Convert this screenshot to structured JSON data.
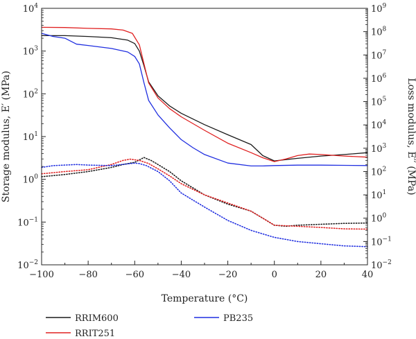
{
  "chart_data": {
    "type": "line",
    "title": "",
    "xlabel": "Temperature (°C)",
    "ylabel_left": "Storage modulus, E′ (MPa)",
    "ylabel_right": "Loss modulus, E′′ (MPa)",
    "xlim": [
      -100,
      40
    ],
    "ylim_left": [
      0.01,
      10000
    ],
    "ylim_right": [
      0.01,
      1000000000
    ],
    "y_scale": "log",
    "grid": false,
    "legend_position": "bottom",
    "x_ticks": [
      "−100",
      "−80",
      "−60",
      "−40",
      "−20",
      "0",
      "20",
      "40"
    ],
    "left_tick_exponents": [
      "−2",
      "−1",
      "0",
      "1",
      "2",
      "3",
      "4"
    ],
    "right_tick_exponents": [
      "−2",
      "−1",
      "0",
      "1",
      "2",
      "3",
      "4",
      "5",
      "6",
      "7",
      "8",
      "9"
    ],
    "tick_base": "10",
    "series": [
      {
        "name": "RRIM600",
        "color": "#1a1a1a",
        "style": "solid",
        "axis": "left",
        "points": [
          [
            -100,
            2300
          ],
          [
            -90,
            2300
          ],
          [
            -80,
            2200
          ],
          [
            -70,
            2050
          ],
          [
            -63,
            1800
          ],
          [
            -60,
            1500
          ],
          [
            -58,
            1000
          ],
          [
            -56,
            450
          ],
          [
            -54,
            190
          ],
          [
            -50,
            90
          ],
          [
            -45,
            52
          ],
          [
            -40,
            35
          ],
          [
            -30,
            19
          ],
          [
            -20,
            11
          ],
          [
            -10,
            6.5
          ],
          [
            -5,
            3.6
          ],
          [
            0,
            2.7
          ],
          [
            5,
            2.9
          ],
          [
            10,
            3.1
          ],
          [
            20,
            3.5
          ],
          [
            30,
            3.8
          ],
          [
            40,
            4.2
          ]
        ]
      },
      {
        "name": "RRIT251",
        "color": "#e02020",
        "style": "solid",
        "axis": "left",
        "points": [
          [
            -100,
            3600
          ],
          [
            -90,
            3550
          ],
          [
            -80,
            3400
          ],
          [
            -70,
            3300
          ],
          [
            -65,
            3100
          ],
          [
            -61,
            2600
          ],
          [
            -58,
            1400
          ],
          [
            -56,
            500
          ],
          [
            -54,
            180
          ],
          [
            -50,
            80
          ],
          [
            -45,
            45
          ],
          [
            -40,
            29
          ],
          [
            -30,
            14
          ],
          [
            -20,
            7
          ],
          [
            -10,
            4.2
          ],
          [
            -5,
            3.2
          ],
          [
            0,
            2.6
          ],
          [
            5,
            3
          ],
          [
            10,
            3.6
          ],
          [
            15,
            3.9
          ],
          [
            20,
            3.8
          ],
          [
            30,
            3.5
          ],
          [
            40,
            3.3
          ]
        ]
      },
      {
        "name": "PB235",
        "color": "#1f2ee0",
        "style": "solid",
        "axis": "left",
        "points": [
          [
            -100,
            2600
          ],
          [
            -95,
            2200
          ],
          [
            -90,
            2000
          ],
          [
            -85,
            1450
          ],
          [
            -80,
            1350
          ],
          [
            -70,
            1150
          ],
          [
            -63,
            950
          ],
          [
            -60,
            750
          ],
          [
            -58,
            500
          ],
          [
            -56,
            180
          ],
          [
            -54,
            70
          ],
          [
            -50,
            32
          ],
          [
            -45,
            16
          ],
          [
            -40,
            8.5
          ],
          [
            -35,
            5.5
          ],
          [
            -30,
            3.8
          ],
          [
            -20,
            2.4
          ],
          [
            -10,
            2.05
          ],
          [
            -5,
            2.05
          ],
          [
            0,
            2.1
          ],
          [
            10,
            2.15
          ],
          [
            20,
            2.15
          ],
          [
            30,
            2.12
          ],
          [
            40,
            2.1
          ]
        ]
      },
      {
        "name": "RRIM600",
        "color": "#1a1a1a",
        "style": "dotted",
        "axis": "right",
        "points": [
          [
            -100,
            60
          ],
          [
            -90,
            75
          ],
          [
            -80,
            100
          ],
          [
            -70,
            150
          ],
          [
            -65,
            200
          ],
          [
            -60,
            250
          ],
          [
            -56,
            400
          ],
          [
            -53,
            300
          ],
          [
            -50,
            200
          ],
          [
            -45,
            100
          ],
          [
            -40,
            40
          ],
          [
            -30,
            10
          ],
          [
            -20,
            4
          ],
          [
            -10,
            2
          ],
          [
            -5,
            1
          ],
          [
            0,
            0.5
          ],
          [
            5,
            0.45
          ],
          [
            10,
            0.5
          ],
          [
            20,
            0.55
          ],
          [
            30,
            0.6
          ],
          [
            40,
            0.62
          ]
        ]
      },
      {
        "name": "RRIT251",
        "color": "#e02020",
        "style": "dotted",
        "axis": "right",
        "points": [
          [
            -100,
            80
          ],
          [
            -90,
            100
          ],
          [
            -80,
            120
          ],
          [
            -70,
            200
          ],
          [
            -65,
            300
          ],
          [
            -62,
            340
          ],
          [
            -58,
            300
          ],
          [
            -54,
            220
          ],
          [
            -50,
            130
          ],
          [
            -45,
            65
          ],
          [
            -40,
            30
          ],
          [
            -30,
            10
          ],
          [
            -20,
            4.5
          ],
          [
            -10,
            2
          ],
          [
            -5,
            1
          ],
          [
            0,
            0.5
          ],
          [
            10,
            0.45
          ],
          [
            20,
            0.4
          ],
          [
            30,
            0.35
          ],
          [
            40,
            0.34
          ]
        ]
      },
      {
        "name": "PB235",
        "color": "#1f2ee0",
        "style": "dotted",
        "axis": "right",
        "points": [
          [
            -100,
            150
          ],
          [
            -95,
            180
          ],
          [
            -90,
            190
          ],
          [
            -85,
            200
          ],
          [
            -80,
            190
          ],
          [
            -70,
            180
          ],
          [
            -60,
            230
          ],
          [
            -58,
            220
          ],
          [
            -55,
            180
          ],
          [
            -50,
            100
          ],
          [
            -45,
            40
          ],
          [
            -40,
            12
          ],
          [
            -30,
            3
          ],
          [
            -20,
            0.8
          ],
          [
            -10,
            0.3
          ],
          [
            0,
            0.15
          ],
          [
            10,
            0.1
          ],
          [
            20,
            0.08
          ],
          [
            30,
            0.065
          ],
          [
            40,
            0.06
          ]
        ]
      }
    ],
    "legend": [
      {
        "label": "RRIM600",
        "color": "#1a1a1a"
      },
      {
        "label": "PB235",
        "color": "#1f2ee0"
      },
      {
        "label": "RRIT251",
        "color": "#e02020"
      }
    ]
  }
}
